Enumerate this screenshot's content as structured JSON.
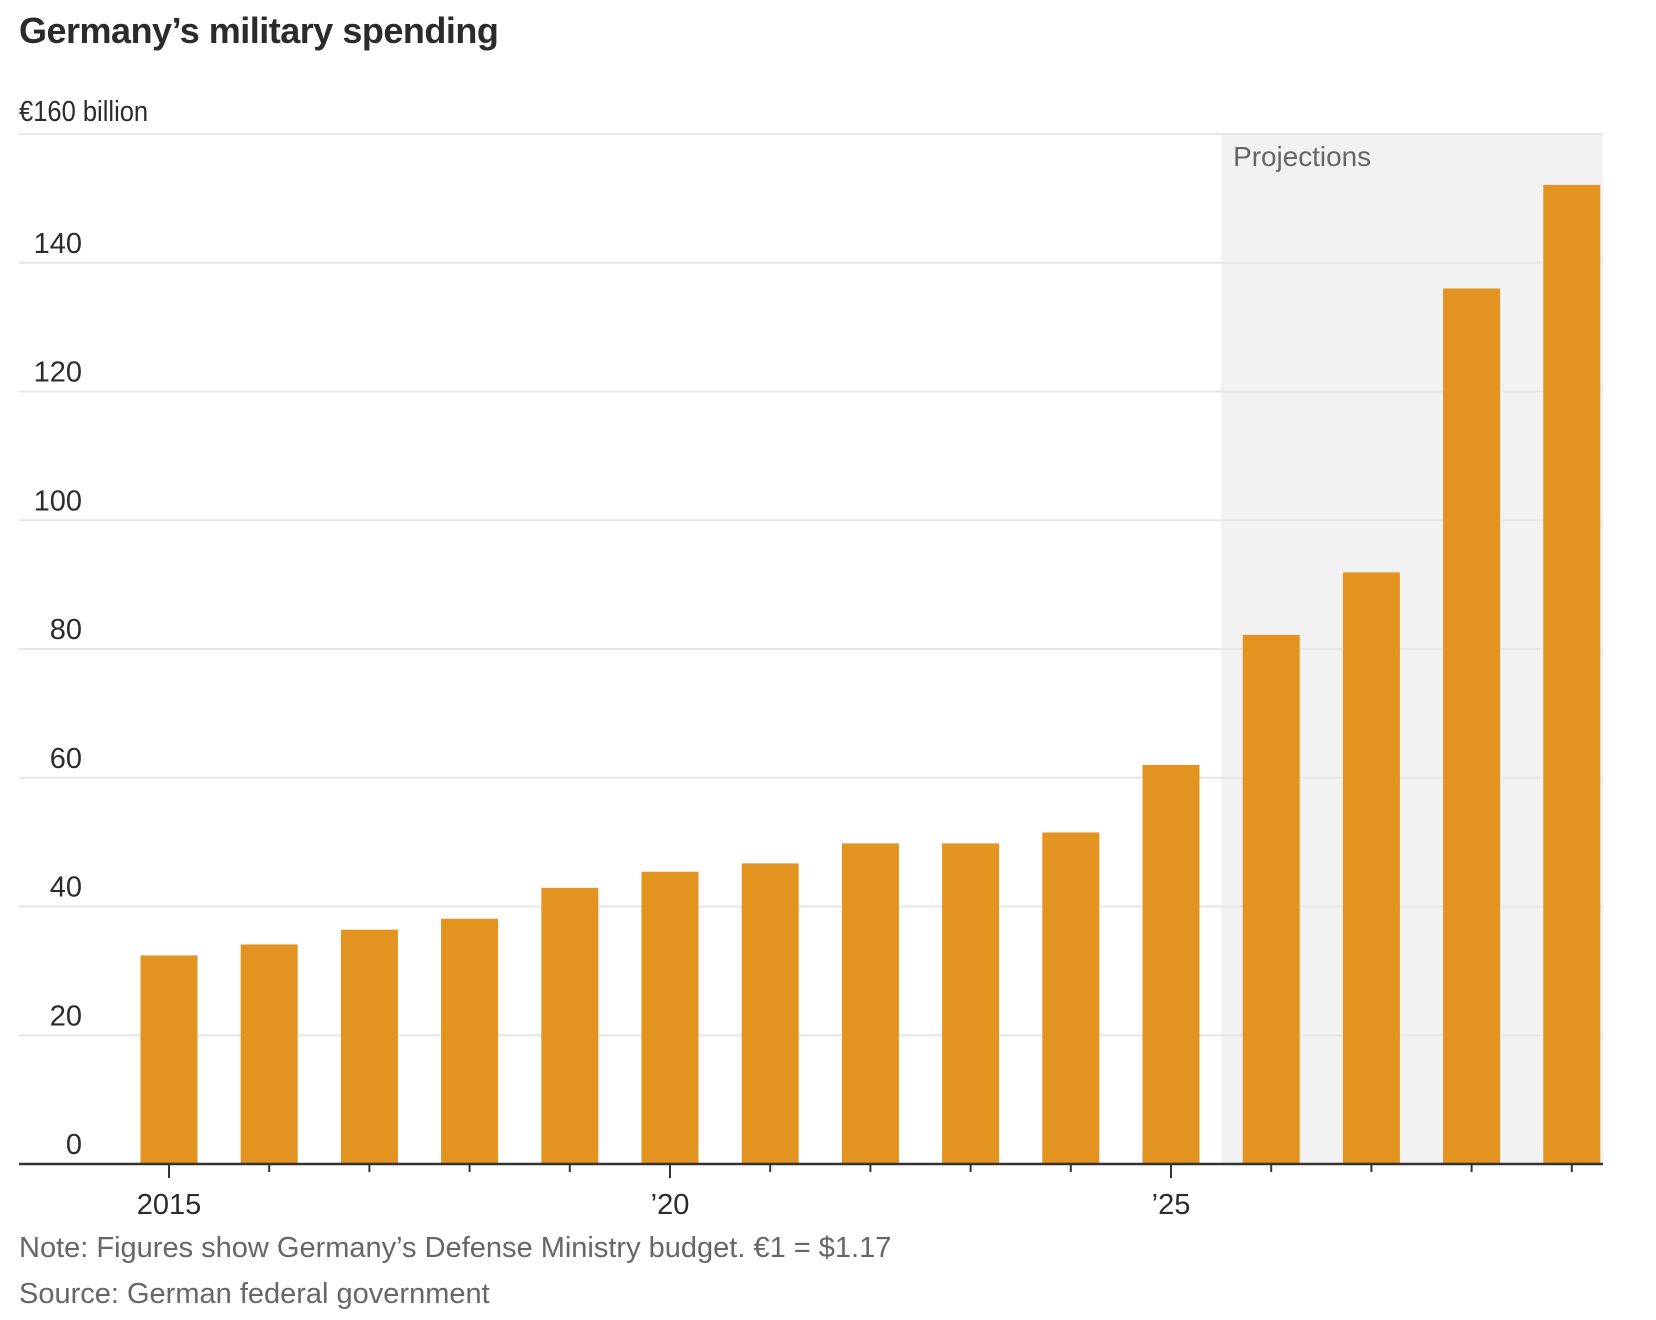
{
  "chart_data": {
    "type": "bar",
    "title": "Germany’s military spending",
    "unit_label": "€160 billion",
    "xlabel": "",
    "ylabel": "",
    "categories": [
      "2015",
      "2016",
      "2017",
      "2018",
      "2019",
      "2020",
      "2021",
      "2022",
      "2023",
      "2024",
      "2025",
      "2026",
      "2027",
      "2028",
      "2029"
    ],
    "values": [
      32.4,
      34.1,
      36.4,
      38.1,
      42.9,
      45.4,
      46.7,
      49.8,
      49.8,
      51.5,
      62.0,
      82.2,
      91.9,
      136.0,
      152.1
    ],
    "ylim": [
      0,
      160
    ],
    "yticks": [
      0,
      20,
      40,
      60,
      80,
      100,
      120,
      140,
      160
    ],
    "ytick_labels": [
      "0",
      "20",
      "40",
      "60",
      "80",
      "100",
      "120",
      "140",
      ""
    ],
    "xtick_labels": [
      {
        "category": "2015",
        "label": "2015"
      },
      {
        "category": "2020",
        "label": "’20"
      },
      {
        "category": "2025",
        "label": "’25"
      }
    ],
    "grid": true,
    "projection": {
      "label": "Projections",
      "from_category": "2026",
      "to_category": "2029"
    },
    "colors": {
      "bar": "#E29320",
      "projection_bg": "#F2F2F2",
      "grid": "#E6E6E6",
      "axis": "#333333",
      "text": "#2b2b2b",
      "muted": "#666666"
    }
  },
  "note": "Note: Figures show Germany’s Defense Ministry budget. €1 = $1.17",
  "source": "Source: German federal government"
}
